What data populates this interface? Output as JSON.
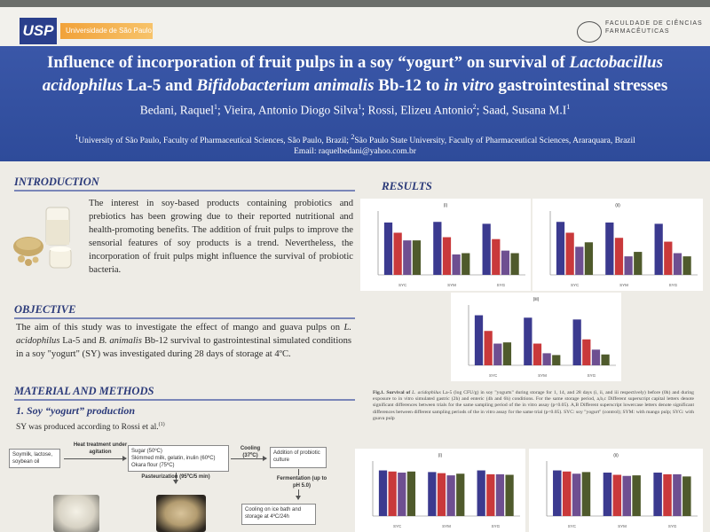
{
  "logos": {
    "left_text": "USP",
    "left_band_text": "Universidade de São Paulo",
    "right_text": "FACULDADE DE CIÊNCIAS FARMACÊUTICAS"
  },
  "header": {
    "title_line1_a": "Influence of incorporation of fruit pulps in a soy “yogurt” on survival of ",
    "title_line1_b": "Lactobacillus",
    "title_line2_a": "acidophilus",
    "title_line2_b": " La-5 and ",
    "title_line2_c": "Bifidobacterium animalis",
    "title_line2_d": " Bb-12 to ",
    "title_line2_e": "in vitro",
    "title_line2_f": " gastrointestinal stresses",
    "authors": [
      {
        "name": "Bedani, Raquel",
        "sup": "1"
      },
      {
        "name": "Vieira, Antonio Diogo Silva",
        "sup": "1"
      },
      {
        "name": "Rossi, Elizeu Antonio",
        "sup": "2"
      },
      {
        "name": "Saad, Susana M.I",
        "sup": "1"
      }
    ],
    "affiliation1": "University of São Paulo, Faculty of Pharmaceutical Sciences, São Paulo, Brazil; ",
    "affiliation2": "São Paulo State University, Faculty of Pharmaceutical Sciences, Araraquara, Brazil",
    "email": "Email: raquelbedani@yahoo.com.br"
  },
  "introduction": {
    "heading": "INTRODUCTION",
    "text": "The interest in soy-based products containing probiotics and prebiotics has been growing due to their reported nutritional and health-promoting benefits. The addition of fruit pulps to improve the sensorial features of soy products is a trend. Nevertheless, the incorporation of fruit pulps might influence the survival of probiotic bacteria."
  },
  "objective": {
    "heading": "OBJECTIVE",
    "text_a": "The aim of this study was to investigate the effect of mango and guava pulps on ",
    "text_b": "L. acidophilus",
    "text_c": " La-5 and ",
    "text_d": "B. animalis",
    "text_e": " Bb-12 survival to gastrointestinal simulated conditions in a soy \"yogurt\" (SY) was investigated during 28 days of storage at 4ºC."
  },
  "methods": {
    "heading": "MATERIAL AND METHODS",
    "subheading": "1. Soy  “yogurt” production",
    "text": "SY was produced according to Rossi et al.",
    "text_sup": "(1)",
    "flow": {
      "box1": "Soymilk, lactose, soybean oil",
      "step1": "Heat treatment under agitation",
      "box2_l1": "Sugar (50ºC)",
      "box2_l2": "Skimmed milk, gelatin, inulin (60ºC)",
      "box2_l3": "Okara flour (75ºC)",
      "step2": "Cooling (37ºC)",
      "box3": "Addition of probiotic culture",
      "step3": "Pasteurization (95ºC/5 min)",
      "step4": "Fermentation (up to pH 5.0)",
      "box4": "Cooling on ice bath and storage at 4ºC/24h"
    }
  },
  "results": {
    "heading": "RESULTS",
    "caption_a": "Fig.1. Survival of ",
    "caption_b": "L. acidophilus",
    "caption_c": " La-5 (log CFU/g) in soy \"yogurts\" during storage for 1, 14, and 28 days (i, ii, and iii respectively) before (0h) and during exposure to in vitro simulated gastric (2h) and enteric (4h and 6h) conditions. For the same storage period, a,b,c Different superscript capital letters denote significant differences between trials for the same sampling period of the in vitro assay (p<0.05). A,B Different superscript lowercase letters denote significant differences between different sampling periods of the in vitro assay for the same trial (p<0.05). SYC: soy \"yogurt\" (control); SYM: with mango pulp; SYG: with guava pulp"
  },
  "colors": {
    "title_band": "#2e4b9a",
    "bar_navy": "#3b3a8f",
    "bar_red": "#c9393b",
    "bar_purple": "#6e4f91",
    "bar_olive": "#4f5a2c",
    "heading": "#2c3b7a"
  },
  "chart_data": [
    {
      "type": "bar",
      "title": "(i)",
      "groups": [
        "SYC",
        "SYM",
        "SYG"
      ],
      "series_colors": [
        "#3b3a8f",
        "#c9393b",
        "#6e4f91",
        "#4f5a2c"
      ],
      "values": [
        [
          8.2,
          6.6,
          5.4,
          5.4
        ],
        [
          8.3,
          5.9,
          3.2,
          3.4
        ],
        [
          8.0,
          5.6,
          3.8,
          3.4
        ]
      ]
    },
    {
      "type": "bar",
      "title": "(ii)",
      "groups": [
        "SYC",
        "SYM",
        "SYG"
      ],
      "series_colors": [
        "#3b3a8f",
        "#c9393b",
        "#6e4f91",
        "#4f5a2c"
      ],
      "values": [
        [
          8.3,
          6.6,
          4.4,
          5.1
        ],
        [
          8.2,
          5.8,
          2.9,
          3.6
        ],
        [
          8.0,
          5.2,
          3.4,
          2.9
        ]
      ]
    },
    {
      "type": "bar",
      "title": "(iii)",
      "groups": [
        "SYC",
        "SYM",
        "SYG"
      ],
      "series_colors": [
        "#3b3a8f",
        "#c9393b",
        "#6e4f91",
        "#4f5a2c"
      ],
      "values": [
        [
          8.3,
          5.7,
          3.6,
          3.8
        ],
        [
          7.9,
          3.6,
          2.0,
          1.7
        ],
        [
          7.6,
          4.3,
          2.6,
          1.8
        ]
      ]
    },
    {
      "type": "bar",
      "title": "(i)",
      "groups": [
        "SYC",
        "SYM",
        "SYG"
      ],
      "series_colors": [
        "#3b3a8f",
        "#c9393b",
        "#6e4f91",
        "#4f5a2c"
      ],
      "values": [
        [
          8.3,
          8.1,
          7.9,
          8.1
        ],
        [
          8.0,
          7.8,
          7.4,
          7.7
        ],
        [
          8.3,
          7.6,
          7.6,
          7.5
        ]
      ]
    },
    {
      "type": "bar",
      "title": "(ii)",
      "groups": [
        "SYC",
        "SYM",
        "SYG"
      ],
      "series_colors": [
        "#3b3a8f",
        "#c9393b",
        "#6e4f91",
        "#4f5a2c"
      ],
      "values": [
        [
          8.3,
          8.1,
          7.7,
          8.0
        ],
        [
          7.9,
          7.5,
          7.3,
          7.4
        ],
        [
          7.9,
          7.6,
          7.6,
          7.2
        ]
      ]
    }
  ]
}
